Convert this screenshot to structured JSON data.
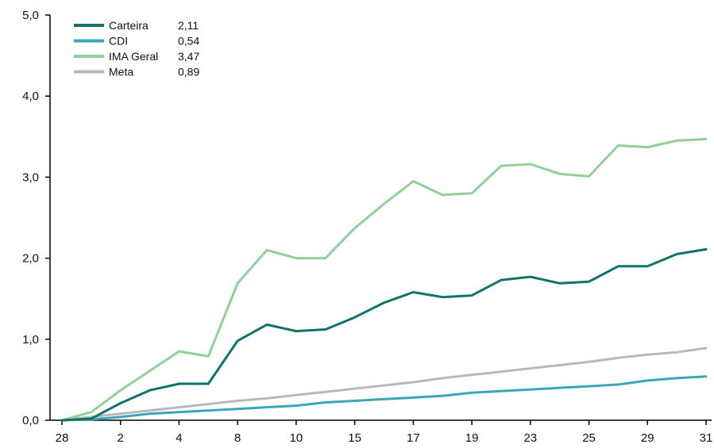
{
  "chart_data": {
    "type": "line",
    "title": "",
    "xlabel": "",
    "ylabel": "",
    "ylim": [
      0,
      5
    ],
    "yticks": [
      "0,0",
      "1,0",
      "2,0",
      "3,0",
      "4,0",
      "5,0"
    ],
    "x_tick_labels": [
      "28",
      "2",
      "4",
      "8",
      "10",
      "15",
      "17",
      "19",
      "23",
      "25",
      "29",
      "31"
    ],
    "grid": false,
    "legend_position": "top-left",
    "series": [
      {
        "name": "Carteira",
        "legend_value": "2,11",
        "color": "#0f7468",
        "values": [
          0.0,
          0.02,
          0.21,
          0.37,
          0.45,
          0.45,
          0.98,
          1.18,
          1.1,
          1.12,
          1.27,
          1.45,
          1.58,
          1.52,
          1.54,
          1.73,
          1.77,
          1.69,
          1.71,
          1.9,
          1.9,
          2.05,
          2.11
        ]
      },
      {
        "name": "CDI",
        "legend_value": "0,54",
        "color": "#3aa6b9",
        "values": [
          0.0,
          0.01,
          0.04,
          0.08,
          0.1,
          0.12,
          0.14,
          0.16,
          0.18,
          0.22,
          0.24,
          0.26,
          0.28,
          0.3,
          0.34,
          0.36,
          0.38,
          0.4,
          0.42,
          0.44,
          0.49,
          0.52,
          0.54
        ]
      },
      {
        "name": "IMA Geral",
        "legend_value": "3,47",
        "color": "#93cf99",
        "values": [
          0.0,
          0.1,
          0.37,
          0.61,
          0.85,
          0.79,
          1.69,
          2.1,
          2.0,
          2.0,
          2.37,
          2.67,
          2.95,
          2.78,
          2.8,
          3.14,
          3.16,
          3.04,
          3.01,
          3.39,
          3.37,
          3.45,
          3.47
        ]
      },
      {
        "name": "Meta",
        "legend_value": "0,89",
        "color": "#b9b9bb",
        "values": [
          0.0,
          0.04,
          0.08,
          0.12,
          0.16,
          0.2,
          0.24,
          0.27,
          0.31,
          0.35,
          0.39,
          0.43,
          0.47,
          0.52,
          0.56,
          0.6,
          0.64,
          0.68,
          0.72,
          0.77,
          0.81,
          0.84,
          0.89
        ]
      }
    ]
  }
}
